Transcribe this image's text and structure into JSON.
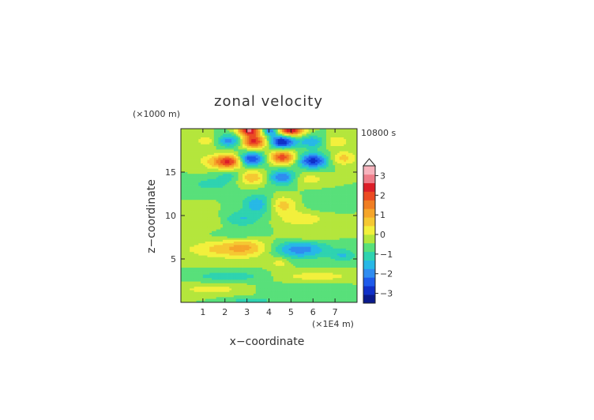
{
  "chart_data": {
    "type": "heatmap",
    "title": "zonal velocity",
    "xlabel": "x−coordinate",
    "ylabel": "z−coordinate",
    "x_unit": "(×1E4 m)",
    "y_unit": "(×1000 m)",
    "time_label": "10800 s",
    "xlim": [
      0,
      8
    ],
    "ylim": [
      0,
      20
    ],
    "x_ticks": [
      1,
      2,
      3,
      4,
      5,
      6,
      7
    ],
    "y_ticks": [
      5,
      10,
      15
    ],
    "colorbar": {
      "min": -3.5,
      "max": 3.5,
      "step": 0.5,
      "ticks": [
        -3,
        -2,
        -1,
        0,
        1,
        2,
        3
      ],
      "tick_labels": [
        "−3",
        "−2",
        "−1",
        "0",
        "1",
        "2",
        "3"
      ],
      "colors": [
        "#0a1a8c",
        "#1030c8",
        "#1e5aeb",
        "#2f8cf0",
        "#27b8e6",
        "#2ed3b0",
        "#58e07a",
        "#b4e63c",
        "#f2f03c",
        "#f5c832",
        "#f5a52a",
        "#f07e23",
        "#eb4b23",
        "#dc1e28",
        "#ee7d8a",
        "#f7b3bd"
      ]
    },
    "features": [
      {
        "x": 3.1,
        "z": 19.8,
        "amp": 3.6,
        "sx": 0.35,
        "sz": 0.45
      },
      {
        "x": 5.0,
        "z": 19.8,
        "amp": 3.6,
        "sx": 0.4,
        "sz": 0.45
      },
      {
        "x": 4.05,
        "z": 19.8,
        "amp": -2.0,
        "sx": 0.25,
        "sz": 0.45
      },
      {
        "x": 3.3,
        "z": 18.5,
        "amp": 3.2,
        "sx": 0.4,
        "sz": 0.55
      },
      {
        "x": 4.6,
        "z": 18.5,
        "amp": -3.0,
        "sx": 0.4,
        "sz": 0.55
      },
      {
        "x": 2.2,
        "z": 18.6,
        "amp": -1.8,
        "sx": 0.45,
        "sz": 0.5
      },
      {
        "x": 6.0,
        "z": 18.5,
        "amp": -1.5,
        "sx": 0.45,
        "sz": 0.5
      },
      {
        "x": 7.0,
        "z": 18.5,
        "amp": 1.0,
        "sx": 0.45,
        "sz": 0.5
      },
      {
        "x": 1.2,
        "z": 18.6,
        "amp": 0.9,
        "sx": 0.4,
        "sz": 0.5
      },
      {
        "x": 1.5,
        "z": 16.2,
        "amp": 1.0,
        "sx": 0.5,
        "sz": 0.6
      },
      {
        "x": 2.2,
        "z": 16.2,
        "amp": 2.8,
        "sx": 0.4,
        "sz": 0.55
      },
      {
        "x": 3.2,
        "z": 16.5,
        "amp": -2.6,
        "sx": 0.4,
        "sz": 0.55
      },
      {
        "x": 4.6,
        "z": 16.7,
        "amp": 2.8,
        "sx": 0.4,
        "sz": 0.55
      },
      {
        "x": 6.0,
        "z": 16.3,
        "amp": -2.8,
        "sx": 0.45,
        "sz": 0.6
      },
      {
        "x": 7.4,
        "z": 16.6,
        "amp": 1.2,
        "sx": 0.4,
        "sz": 0.55
      },
      {
        "x": 3.2,
        "z": 14.4,
        "amp": 1.6,
        "sx": 0.45,
        "sz": 0.6
      },
      {
        "x": 4.6,
        "z": 14.4,
        "amp": -2.0,
        "sx": 0.45,
        "sz": 0.6
      },
      {
        "x": 2.3,
        "z": 14.6,
        "amp": -0.8,
        "sx": 0.5,
        "sz": 0.5
      },
      {
        "x": 5.8,
        "z": 14.2,
        "amp": 0.8,
        "sx": 0.5,
        "sz": 0.5
      },
      {
        "x": 1.4,
        "z": 13.6,
        "amp": -0.8,
        "sx": 0.6,
        "sz": 0.5
      },
      {
        "x": 3.5,
        "z": 11.3,
        "amp": -1.4,
        "sx": 0.5,
        "sz": 0.8
      },
      {
        "x": 2.7,
        "z": 9.6,
        "amp": -1.0,
        "sx": 0.65,
        "sz": 0.6
      },
      {
        "x": 4.6,
        "z": 11.2,
        "amp": 1.3,
        "sx": 0.45,
        "sz": 0.7
      },
      {
        "x": 5.5,
        "z": 9.6,
        "amp": 0.9,
        "sx": 0.75,
        "sz": 0.6
      },
      {
        "x": 1.3,
        "z": 9.4,
        "amp": 0.5,
        "sx": 0.6,
        "sz": 0.7
      },
      {
        "x": 6.4,
        "z": 11.5,
        "amp": -0.5,
        "sx": 0.55,
        "sz": 0.7
      },
      {
        "x": 1.5,
        "z": 6.1,
        "amp": 0.9,
        "sx": 1.0,
        "sz": 0.7
      },
      {
        "x": 3.0,
        "z": 6.3,
        "amp": 1.4,
        "sx": 0.8,
        "sz": 0.8
      },
      {
        "x": 5.4,
        "z": 6.1,
        "amp": -1.8,
        "sx": 0.9,
        "sz": 0.75
      },
      {
        "x": 7.4,
        "z": 5.4,
        "amp": -1.0,
        "sx": 0.4,
        "sz": 0.5
      },
      {
        "x": 2.8,
        "z": 7.8,
        "amp": -0.6,
        "sx": 0.8,
        "sz": 0.5
      },
      {
        "x": 5.6,
        "z": 7.6,
        "amp": 0.6,
        "sx": 0.8,
        "sz": 0.5
      },
      {
        "x": 2.2,
        "z": 3.0,
        "amp": -0.9,
        "sx": 1.1,
        "sz": 0.4
      },
      {
        "x": 6.2,
        "z": 3.0,
        "amp": 0.8,
        "sx": 1.2,
        "sz": 0.4
      },
      {
        "x": 1.4,
        "z": 1.5,
        "amp": 0.8,
        "sx": 1.0,
        "sz": 0.4
      },
      {
        "x": 5.5,
        "z": 1.5,
        "amp": -0.5,
        "sx": 1.2,
        "sz": 0.4
      },
      {
        "x": 3.2,
        "z": 0.2,
        "amp": -0.9,
        "sx": 0.7,
        "sz": 0.25
      },
      {
        "x": 4.5,
        "z": 4.6,
        "amp": 0.8,
        "sx": 0.3,
        "sz": 0.5
      }
    ]
  }
}
